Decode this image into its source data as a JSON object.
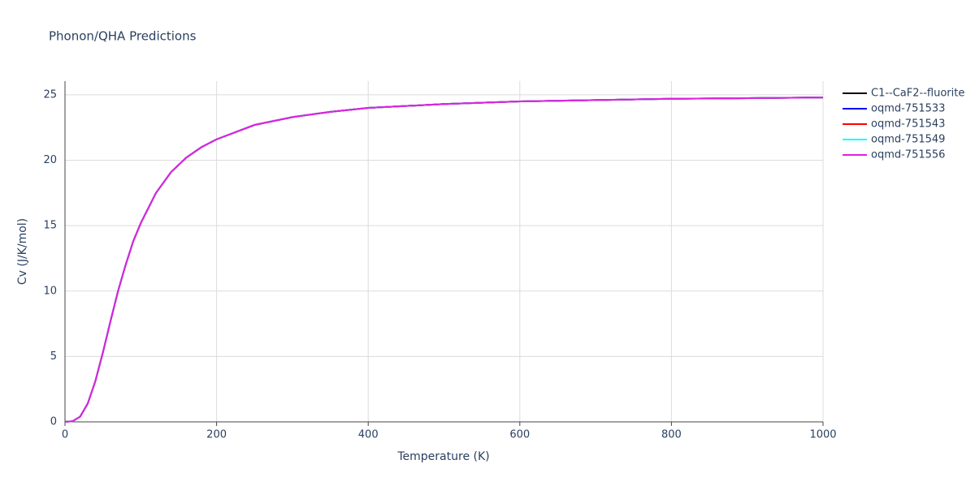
{
  "chart_data": {
    "type": "line",
    "title": "Phonon/QHA Predictions",
    "x_label": "Temperature (K)",
    "y_label": "Cv (J/K/mol)",
    "x": [
      0,
      10,
      20,
      30,
      40,
      50,
      60,
      70,
      80,
      90,
      100,
      120,
      140,
      160,
      180,
      200,
      250,
      300,
      350,
      400,
      500,
      600,
      700,
      800,
      900,
      1000
    ],
    "series": [
      {
        "name": "C1--CaF2--fluorite",
        "color": "#000000",
        "values": [
          0,
          0.05,
          0.4,
          1.4,
          3.1,
          5.3,
          7.7,
          10.0,
          12.0,
          13.8,
          15.2,
          17.5,
          19.1,
          20.2,
          21.0,
          21.6,
          22.7,
          23.3,
          23.7,
          24.0,
          24.3,
          24.5,
          24.6,
          24.7,
          24.75,
          24.8
        ]
      },
      {
        "name": "oqmd-751533",
        "color": "#0000ff",
        "values": [
          0,
          0.05,
          0.4,
          1.4,
          3.1,
          5.3,
          7.7,
          10.0,
          12.0,
          13.8,
          15.2,
          17.5,
          19.1,
          20.2,
          21.0,
          21.6,
          22.7,
          23.3,
          23.7,
          24.0,
          24.3,
          24.5,
          24.6,
          24.7,
          24.75,
          24.8
        ]
      },
      {
        "name": "oqmd-751543",
        "color": "#ff0000",
        "values": [
          0,
          0.05,
          0.4,
          1.4,
          3.1,
          5.3,
          7.7,
          10.0,
          12.0,
          13.8,
          15.2,
          17.5,
          19.1,
          20.2,
          21.0,
          21.6,
          22.7,
          23.3,
          23.7,
          24.0,
          24.3,
          24.5,
          24.6,
          24.7,
          24.75,
          24.8
        ]
      },
      {
        "name": "oqmd-751549",
        "color": "#00ffff",
        "values": [
          0,
          0.05,
          0.4,
          1.4,
          3.1,
          5.3,
          7.7,
          10.0,
          12.0,
          13.8,
          15.2,
          17.5,
          19.1,
          20.2,
          21.0,
          21.6,
          22.7,
          23.3,
          23.7,
          24.0,
          24.3,
          24.5,
          24.6,
          24.7,
          24.75,
          24.8
        ]
      },
      {
        "name": "oqmd-751556",
        "color": "#e020e0",
        "values": [
          0,
          0.05,
          0.4,
          1.4,
          3.1,
          5.3,
          7.7,
          10.0,
          12.0,
          13.8,
          15.2,
          17.5,
          19.1,
          20.2,
          21.0,
          21.6,
          22.7,
          23.3,
          23.7,
          24.0,
          24.3,
          24.5,
          24.6,
          24.7,
          24.75,
          24.8
        ]
      }
    ],
    "xlim": [
      0,
      1000
    ],
    "xticks": [
      0,
      200,
      400,
      600,
      800,
      1000
    ],
    "ylim": [
      0,
      26.05
    ],
    "yticks": [
      0,
      5,
      10,
      15,
      20,
      25
    ],
    "grid": true,
    "legend": "top-right"
  }
}
